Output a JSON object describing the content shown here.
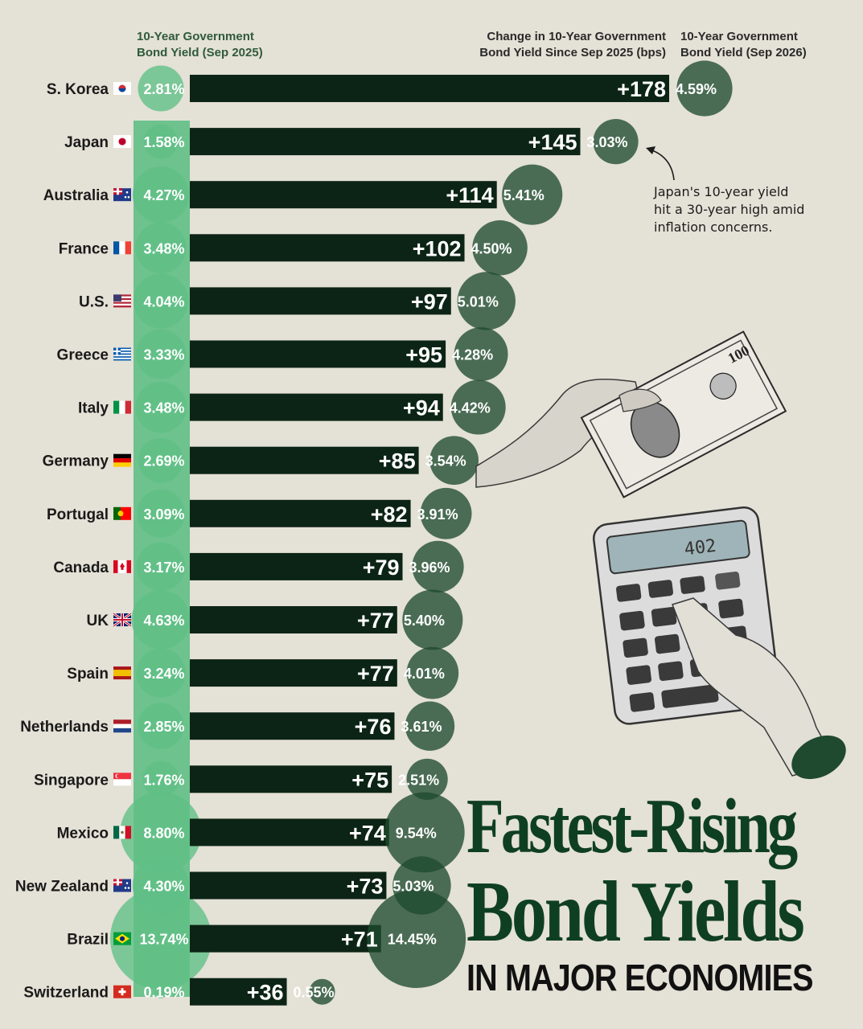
{
  "header": {
    "left_line1": "10-Year Government",
    "left_line2": "Bond Yield (Sep 2025)",
    "mid_line1": "Change in 10-Year Government",
    "mid_line2": "Bond Yield Since Sep 2025 (bps)",
    "right_line1": "10-Year Government",
    "right_line2": "Bond Yield (Sep 2026)"
  },
  "annotation": {
    "line1": "Japan's 10-year yield",
    "line2": "hit a 30-year high amid",
    "line3": "inflation concerns."
  },
  "title": {
    "line1": "Fastest-Rising",
    "line2": "Bond Yields",
    "line3": "IN MAJOR ECONOMIES"
  },
  "colors": {
    "background": "#e4e1d6",
    "bar": "#0c2415",
    "yield_2025_bubble": "#5fbf85",
    "yield_2026_bubble": "#1f4a30",
    "title": "#0f3f22"
  },
  "chart_data": {
    "type": "bar",
    "orientation": "horizontal",
    "categories": [
      "S. Korea",
      "Japan",
      "Australia",
      "France",
      "U.S.",
      "Greece",
      "Italy",
      "Germany",
      "Portugal",
      "Canada",
      "UK",
      "Spain",
      "Netherlands",
      "Singapore",
      "Mexico",
      "New Zealand",
      "Brazil",
      "Switzerland"
    ],
    "flags": [
      "kr",
      "jp",
      "au",
      "fr",
      "us",
      "gr",
      "it",
      "de",
      "pt",
      "ca",
      "uk",
      "es",
      "nl",
      "sg",
      "mx",
      "nz",
      "br",
      "ch"
    ],
    "series": [
      {
        "name": "Change in 10-Year Government Bond Yield Since Sep 2025 (bps)",
        "values": [
          178,
          145,
          114,
          102,
          97,
          95,
          94,
          85,
          82,
          79,
          77,
          77,
          76,
          75,
          74,
          73,
          71,
          36
        ],
        "labels": [
          "+178",
          "+145",
          "+114",
          "+102",
          "+97",
          "+95",
          "+94",
          "+85",
          "+82",
          "+79",
          "+77",
          "+77",
          "+76",
          "+75",
          "+74",
          "+73",
          "+71",
          "+36"
        ]
      },
      {
        "name": "10-Year Government Bond Yield (Sep 2025)",
        "values": [
          2.81,
          1.58,
          4.27,
          3.48,
          4.04,
          3.33,
          3.48,
          2.69,
          3.09,
          3.17,
          4.63,
          3.24,
          2.85,
          1.76,
          8.8,
          4.3,
          13.74,
          0.19
        ],
        "labels": [
          "2.81%",
          "1.58%",
          "4.27%",
          "3.48%",
          "4.04%",
          "3.33%",
          "3.48%",
          "2.69%",
          "3.09%",
          "3.17%",
          "4.63%",
          "3.24%",
          "2.85%",
          "1.76%",
          "8.80%",
          "4.30%",
          "13.74%",
          "0.19%"
        ]
      },
      {
        "name": "10-Year Government Bond Yield (Sep 2026)",
        "values": [
          4.59,
          3.03,
          5.41,
          4.5,
          5.01,
          4.28,
          4.42,
          3.54,
          3.91,
          3.96,
          5.4,
          4.01,
          3.61,
          2.51,
          9.54,
          5.03,
          14.45,
          0.55
        ],
        "labels": [
          "4.59%",
          "3.03%",
          "5.41%",
          "4.50%",
          "5.01%",
          "4.28%",
          "4.42%",
          "3.54%",
          "3.91%",
          "3.96%",
          "5.40%",
          "4.01%",
          "3.61%",
          "2.51%",
          "9.54%",
          "5.03%",
          "14.45%",
          "0.55%"
        ]
      }
    ]
  }
}
